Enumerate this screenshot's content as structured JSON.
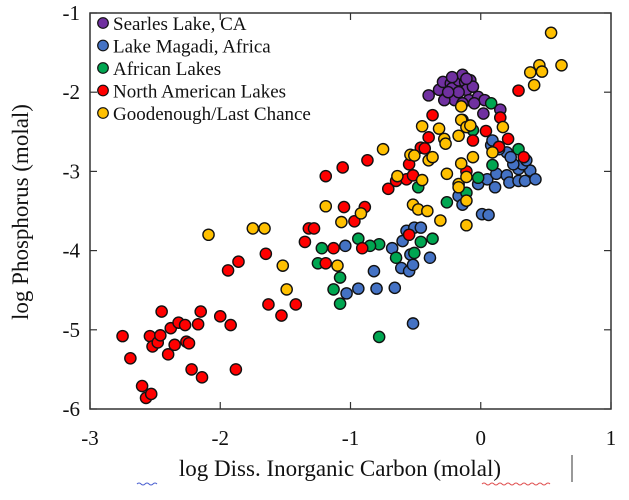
{
  "chart_data": {
    "type": "scatter",
    "xlabel": "log Diss. Inorganic Carbon (molal)",
    "ylabel": "log Phosphorus (molal)",
    "xlim": [
      -3,
      1
    ],
    "ylim": [
      -6,
      -1
    ],
    "xticks": [
      "-3",
      "-2",
      "-1",
      "0",
      "1"
    ],
    "yticks": [
      "-1",
      "-2",
      "-3",
      "-4",
      "-5",
      "-6"
    ],
    "grid": false,
    "legend_position": "top-left",
    "series": [
      {
        "name": "Searles Lake, CA",
        "color": "#7030a0",
        "points": [
          [
            -0.4,
            -2.04
          ],
          [
            -0.32,
            -1.97
          ],
          [
            -0.29,
            -1.87
          ],
          [
            -0.26,
            -2.06
          ],
          [
            -0.23,
            -1.89
          ],
          [
            -0.22,
            -1.95
          ],
          [
            -0.2,
            -2.1
          ],
          [
            -0.17,
            -1.85
          ],
          [
            -0.14,
            -1.78
          ],
          [
            -0.12,
            -1.87
          ],
          [
            -0.11,
            -1.97
          ],
          [
            -0.09,
            -2.1
          ],
          [
            -0.08,
            -1.85
          ],
          [
            -0.06,
            -1.93
          ],
          [
            -0.17,
            -2.0
          ],
          [
            -0.28,
            -2.1
          ],
          [
            -0.02,
            -2.06
          ],
          [
            0.02,
            -2.27
          ],
          [
            0.03,
            -2.1
          ],
          [
            0.15,
            -2.22
          ],
          [
            -0.25,
            -2.0
          ],
          [
            -0.14,
            -2.14
          ],
          [
            -0.05,
            -2.14
          ],
          [
            -0.22,
            -1.81
          ],
          [
            -0.11,
            -1.83
          ]
        ]
      },
      {
        "name": "Lake Magadi, Africa",
        "color": "#4472c4",
        "points": [
          [
            -0.52,
            -4.92
          ],
          [
            0.01,
            -3.54
          ],
          [
            0.06,
            -3.55
          ],
          [
            -0.17,
            -3.31
          ],
          [
            -0.14,
            -3.42
          ],
          [
            -0.02,
            -3.16
          ],
          [
            0.05,
            -3.1
          ],
          [
            0.11,
            -3.2
          ],
          [
            0.12,
            -3.03
          ],
          [
            0.2,
            -3.05
          ],
          [
            0.22,
            -3.14
          ],
          [
            0.29,
            -3.12
          ],
          [
            0.34,
            -3.12
          ],
          [
            0.38,
            -2.99
          ],
          [
            0.42,
            -3.1
          ],
          [
            0.29,
            -2.97
          ],
          [
            0.32,
            -2.91
          ],
          [
            0.35,
            -2.86
          ],
          [
            0.25,
            -2.91
          ],
          [
            0.2,
            -2.76
          ],
          [
            0.14,
            -2.72
          ],
          [
            0.08,
            -2.67
          ],
          [
            0.23,
            -2.82
          ],
          [
            0.09,
            -2.61
          ],
          [
            -0.68,
            -3.97
          ],
          [
            -0.6,
            -3.88
          ],
          [
            -0.57,
            -3.75
          ],
          [
            -0.51,
            -3.71
          ],
          [
            -0.46,
            -3.71
          ],
          [
            -0.54,
            -4.05
          ],
          [
            -0.61,
            -4.22
          ],
          [
            -0.55,
            -4.26
          ],
          [
            -0.52,
            -4.18
          ],
          [
            -0.39,
            -4.09
          ],
          [
            -0.66,
            -4.47
          ],
          [
            -0.82,
            -4.26
          ],
          [
            -0.8,
            -4.48
          ],
          [
            -0.94,
            -4.48
          ],
          [
            -1.03,
            -4.54
          ],
          [
            -1.04,
            -3.94
          ]
        ]
      },
      {
        "name": "African Lakes",
        "color": "#00a651",
        "points": [
          [
            0.08,
            -2.14
          ],
          [
            0.29,
            -2.72
          ],
          [
            0.09,
            -2.92
          ],
          [
            -0.02,
            -3.08
          ],
          [
            -0.11,
            -3.27
          ],
          [
            -0.26,
            -3.39
          ],
          [
            -0.37,
            -3.85
          ],
          [
            -0.46,
            -3.89
          ],
          [
            -0.51,
            -4.03
          ],
          [
            -0.48,
            -3.2
          ],
          [
            -0.65,
            -4.09
          ],
          [
            -0.78,
            -3.92
          ],
          [
            -0.85,
            -3.94
          ],
          [
            -0.94,
            -3.85
          ],
          [
            -1.22,
            -3.97
          ],
          [
            -1.25,
            -4.16
          ],
          [
            -1.08,
            -4.34
          ],
          [
            -1.13,
            -4.49
          ],
          [
            -1.08,
            -4.67
          ],
          [
            -0.78,
            -5.09
          ],
          [
            -0.06,
            -2.48
          ]
        ]
      },
      {
        "name": "North American Lakes",
        "color": "#ff0000",
        "points": [
          [
            -2.75,
            -5.08
          ],
          [
            -2.69,
            -5.36
          ],
          [
            -2.6,
            -5.71
          ],
          [
            -2.57,
            -5.86
          ],
          [
            -2.53,
            -5.81
          ],
          [
            -2.54,
            -5.08
          ],
          [
            -2.52,
            -5.21
          ],
          [
            -2.48,
            -5.16
          ],
          [
            -2.46,
            -5.07
          ],
          [
            -2.45,
            -4.77
          ],
          [
            -2.4,
            -5.31
          ],
          [
            -2.38,
            -4.98
          ],
          [
            -2.35,
            -5.19
          ],
          [
            -2.32,
            -4.91
          ],
          [
            -2.27,
            -4.94
          ],
          [
            -2.26,
            -5.15
          ],
          [
            -2.24,
            -5.17
          ],
          [
            -2.22,
            -5.5
          ],
          [
            -2.17,
            -4.93
          ],
          [
            -2.15,
            -4.77
          ],
          [
            -2.14,
            -5.6
          ],
          [
            -2.0,
            -4.83
          ],
          [
            -1.92,
            -4.94
          ],
          [
            -1.88,
            -5.5
          ],
          [
            -1.94,
            -4.25
          ],
          [
            -1.86,
            -4.14
          ],
          [
            -1.65,
            -4.04
          ],
          [
            -1.63,
            -4.68
          ],
          [
            -1.53,
            -4.82
          ],
          [
            -1.42,
            -4.68
          ],
          [
            -1.35,
            -3.89
          ],
          [
            -1.32,
            -3.72
          ],
          [
            -1.28,
            -3.72
          ],
          [
            -1.19,
            -4.16
          ],
          [
            -1.19,
            -3.06
          ],
          [
            -1.13,
            -3.97
          ],
          [
            -1.06,
            -2.95
          ],
          [
            -1.05,
            -3.45
          ],
          [
            -0.97,
            -3.63
          ],
          [
            -0.91,
            -3.97
          ],
          [
            -0.89,
            -3.45
          ],
          [
            -0.87,
            -2.86
          ],
          [
            -0.71,
            -3.22
          ],
          [
            -0.65,
            -3.12
          ],
          [
            -0.57,
            -3.1
          ],
          [
            -0.55,
            -2.91
          ],
          [
            -0.52,
            -3.05
          ],
          [
            -0.55,
            -3.8
          ],
          [
            -0.46,
            -2.7
          ],
          [
            -0.43,
            -2.71
          ],
          [
            -0.4,
            -2.57
          ],
          [
            -0.37,
            -2.29
          ],
          [
            -0.14,
            -2.35
          ],
          [
            -0.11,
            -3.0
          ],
          [
            -0.06,
            -2.61
          ],
          [
            0.04,
            -2.49
          ],
          [
            0.15,
            -2.32
          ],
          [
            0.21,
            -2.59
          ],
          [
            0.14,
            -2.69
          ],
          [
            0.29,
            -1.98
          ],
          [
            0.33,
            -2.82
          ]
        ]
      },
      {
        "name": "Goodenough/Last Chance",
        "color": "#ffc000",
        "points": [
          [
            0.54,
            -1.25
          ],
          [
            0.38,
            -1.75
          ],
          [
            0.45,
            -1.66
          ],
          [
            0.47,
            -1.74
          ],
          [
            0.41,
            -1.91
          ],
          [
            0.62,
            -1.66
          ],
          [
            -2.09,
            -3.8
          ],
          [
            -1.75,
            -3.72
          ],
          [
            -1.66,
            -3.72
          ],
          [
            -1.52,
            -4.19
          ],
          [
            -1.49,
            -4.49
          ],
          [
            -1.19,
            -3.44
          ],
          [
            -1.1,
            -4.19
          ],
          [
            -1.07,
            -3.64
          ],
          [
            -0.92,
            -3.53
          ],
          [
            -0.75,
            -2.72
          ],
          [
            -0.64,
            -3.06
          ],
          [
            -0.54,
            -2.79
          ],
          [
            -0.51,
            -2.8
          ],
          [
            -0.45,
            -2.43
          ],
          [
            -0.45,
            -3.11
          ],
          [
            -0.52,
            -3.42
          ],
          [
            -0.48,
            -3.48
          ],
          [
            -0.41,
            -3.5
          ],
          [
            -0.4,
            -2.86
          ],
          [
            -0.37,
            -2.82
          ],
          [
            -0.32,
            -2.46
          ],
          [
            -0.31,
            -3.62
          ],
          [
            -0.28,
            -2.59
          ],
          [
            -0.27,
            -2.65
          ],
          [
            -0.26,
            -3.03
          ],
          [
            -0.17,
            -2.55
          ],
          [
            -0.15,
            -2.9
          ],
          [
            -0.15,
            -2.18
          ],
          [
            -0.15,
            -2.35
          ],
          [
            -0.17,
            -3.16
          ],
          [
            -0.11,
            -2.44
          ],
          [
            -0.08,
            -2.42
          ],
          [
            -0.11,
            -3.07
          ],
          [
            -0.11,
            -3.37
          ],
          [
            -0.11,
            -3.68
          ],
          [
            -0.06,
            -2.82
          ],
          [
            0.09,
            -2.76
          ],
          [
            0.17,
            -2.44
          ],
          [
            -0.17,
            -3.2
          ]
        ]
      }
    ]
  }
}
